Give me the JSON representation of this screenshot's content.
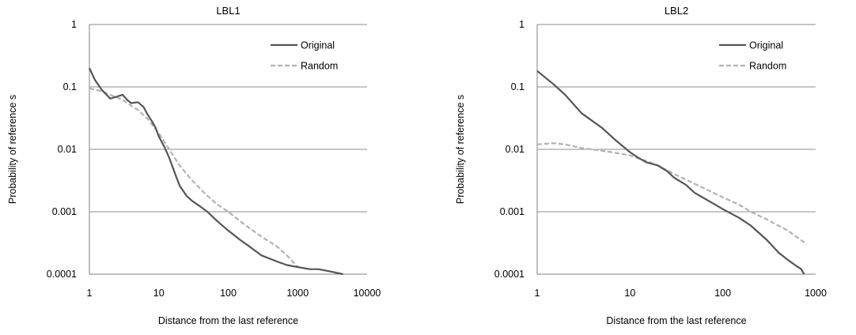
{
  "chart_data": [
    {
      "type": "line",
      "title": "LBL1",
      "xlabel": "Distance from the last reference",
      "ylabel": "Probability of reference s",
      "xscale": "log",
      "yscale": "log",
      "xlim": [
        1,
        10000
      ],
      "ylim": [
        0.0001,
        1
      ],
      "xticks": [
        "1",
        "10",
        "100",
        "1000",
        "10000"
      ],
      "yticks": [
        "0.0001",
        "0.001",
        "0.01",
        "0.1",
        "1"
      ],
      "grid": "horizontal",
      "legend_position": "top-right",
      "series": [
        {
          "name": "Original",
          "color": "#555555",
          "dash": "solid",
          "points": [
            [
              1,
              0.2
            ],
            [
              1.2,
              0.13
            ],
            [
              1.5,
              0.09
            ],
            [
              2,
              0.065
            ],
            [
              2.5,
              0.07
            ],
            [
              3,
              0.075
            ],
            [
              3.5,
              0.062
            ],
            [
              4,
              0.055
            ],
            [
              5,
              0.057
            ],
            [
              6,
              0.048
            ],
            [
              7,
              0.035
            ],
            [
              8,
              0.028
            ],
            [
              9,
              0.022
            ],
            [
              10,
              0.016
            ],
            [
              12,
              0.011
            ],
            [
              14,
              0.0075
            ],
            [
              16,
              0.005
            ],
            [
              18,
              0.0035
            ],
            [
              20,
              0.0026
            ],
            [
              25,
              0.0018
            ],
            [
              30,
              0.0015
            ],
            [
              40,
              0.0012
            ],
            [
              50,
              0.001
            ],
            [
              70,
              0.0007
            ],
            [
              100,
              0.0005
            ],
            [
              150,
              0.00035
            ],
            [
              200,
              0.00028
            ],
            [
              300,
              0.0002
            ],
            [
              500,
              0.00016
            ],
            [
              700,
              0.00014
            ],
            [
              1000,
              0.00013
            ],
            [
              1500,
              0.00012
            ],
            [
              2000,
              0.00012
            ],
            [
              3000,
              0.00011
            ],
            [
              4500,
              0.0001
            ]
          ]
        },
        {
          "name": "Random",
          "color": "#b2b2b2",
          "dash": "dashed",
          "points": [
            [
              1,
              0.095
            ],
            [
              1.5,
              0.085
            ],
            [
              2,
              0.075
            ],
            [
              3,
              0.062
            ],
            [
              4,
              0.05
            ],
            [
              5,
              0.043
            ],
            [
              7,
              0.03
            ],
            [
              10,
              0.018
            ],
            [
              15,
              0.009
            ],
            [
              20,
              0.0055
            ],
            [
              30,
              0.0032
            ],
            [
              40,
              0.0023
            ],
            [
              50,
              0.0018
            ],
            [
              70,
              0.0013
            ],
            [
              100,
              0.001
            ],
            [
              150,
              0.0007
            ],
            [
              200,
              0.00055
            ],
            [
              300,
              0.0004
            ],
            [
              500,
              0.00028
            ],
            [
              700,
              0.0002
            ],
            [
              1000,
              0.00013
            ]
          ]
        }
      ]
    },
    {
      "type": "line",
      "title": "LBL2",
      "xlabel": "Distance from the last reference",
      "ylabel": "Probability of reference s",
      "xscale": "log",
      "yscale": "log",
      "xlim": [
        1,
        1000
      ],
      "ylim": [
        0.0001,
        1
      ],
      "xticks": [
        "1",
        "10",
        "100",
        "1000"
      ],
      "yticks": [
        "0.0001",
        "0.001",
        "0.01",
        "0.1",
        "1"
      ],
      "grid": "horizontal",
      "legend_position": "top-right",
      "series": [
        {
          "name": "Original",
          "color": "#555555",
          "dash": "solid",
          "points": [
            [
              1,
              0.18
            ],
            [
              1.5,
              0.11
            ],
            [
              2,
              0.075
            ],
            [
              3,
              0.038
            ],
            [
              4,
              0.028
            ],
            [
              5,
              0.022
            ],
            [
              7,
              0.014
            ],
            [
              10,
              0.009
            ],
            [
              12,
              0.0075
            ],
            [
              15,
              0.0062
            ],
            [
              20,
              0.0055
            ],
            [
              25,
              0.0045
            ],
            [
              30,
              0.0035
            ],
            [
              40,
              0.0027
            ],
            [
              50,
              0.002
            ],
            [
              70,
              0.0015
            ],
            [
              100,
              0.0011
            ],
            [
              150,
              0.0008
            ],
            [
              200,
              0.0006
            ],
            [
              300,
              0.00035
            ],
            [
              400,
              0.00022
            ],
            [
              500,
              0.00017
            ],
            [
              600,
              0.00014
            ],
            [
              700,
              0.00012
            ],
            [
              750,
              0.0001
            ]
          ]
        },
        {
          "name": "Random",
          "color": "#b2b2b2",
          "dash": "dashed",
          "points": [
            [
              1,
              0.012
            ],
            [
              1.5,
              0.0125
            ],
            [
              2,
              0.012
            ],
            [
              3,
              0.0105
            ],
            [
              5,
              0.0095
            ],
            [
              7,
              0.0088
            ],
            [
              10,
              0.008
            ],
            [
              15,
              0.0065
            ],
            [
              20,
              0.0055
            ],
            [
              30,
              0.004
            ],
            [
              50,
              0.0028
            ],
            [
              70,
              0.0022
            ],
            [
              100,
              0.0017
            ],
            [
              150,
              0.0013
            ],
            [
              200,
              0.001
            ],
            [
              300,
              0.00075
            ],
            [
              500,
              0.0005
            ],
            [
              700,
              0.00035
            ],
            [
              800,
              0.0003
            ]
          ]
        }
      ]
    }
  ]
}
